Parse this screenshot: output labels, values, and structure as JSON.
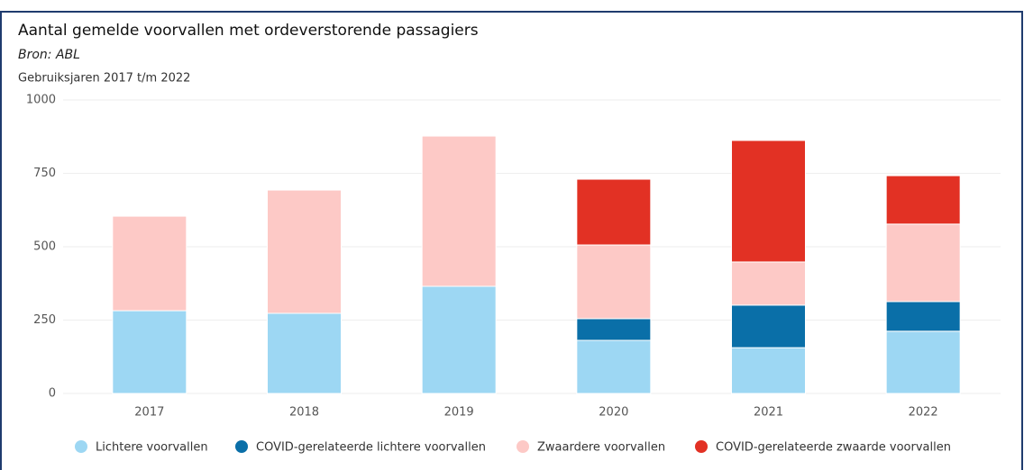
{
  "chart_data": {
    "type": "stacked_bar",
    "title": "Aantal gemelde voorvallen met ordeverstorende passagiers",
    "subtitle": "Bron: ABL",
    "note": "Gebruiksjaren 2017 t/m 2022",
    "categories": [
      "2017",
      "2018",
      "2019",
      "2020",
      "2021",
      "2022"
    ],
    "series": [
      {
        "name": "Lichtere voorvallen",
        "color": "#9dd7f3",
        "values": [
          282,
          273,
          365,
          181,
          156,
          212
        ]
      },
      {
        "name": "COVID-gerelateerde lichtere voorvallen",
        "color": "#0a6fa8",
        "values": [
          null,
          null,
          null,
          74,
          145,
          101
        ]
      },
      {
        "name": "Zwaardere voorvallen",
        "color": "#fdc9c6",
        "values": [
          322,
          420,
          512,
          251,
          147,
          264
        ]
      },
      {
        "name": "COVID-gerelateerde zwaarde voorvallen",
        "color": "#e23124",
        "values": [
          null,
          null,
          null,
          224,
          414,
          165
        ]
      }
    ],
    "ylim": [
      0,
      1000
    ],
    "yticks": [
      0,
      250,
      500,
      750,
      1000
    ],
    "grid": true,
    "legend": "bottom"
  }
}
